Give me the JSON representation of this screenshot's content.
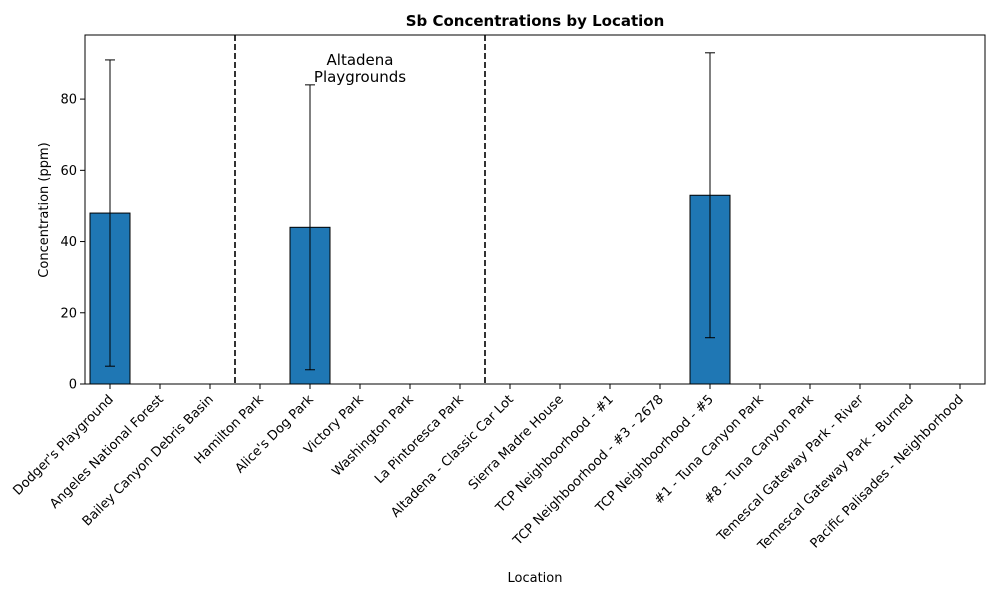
{
  "chart_data": {
    "type": "bar",
    "title": "Sb Concentrations by Location",
    "xlabel": "Location",
    "ylabel": "Concentration (ppm)",
    "ylim": [
      0,
      98
    ],
    "yticks": [
      0,
      20,
      40,
      60,
      80
    ],
    "grid": false,
    "categories": [
      "Dodger's Playground",
      "Angeles National Forest",
      "Bailey Canyon Debris Basin",
      "Hamilton Park",
      "Alice's Dog Park",
      "Victory Park",
      "Washington Park",
      "La Pintoresca Park",
      "Altadena - Classic Car Lot",
      "Sierra Madre House",
      "TCP Neighboorhood - #1",
      "TCP Neighboorhood - #3 - 2678",
      "TCP Neighboorhood - #5",
      "#1 - Tuna Canyon Park",
      "#8 - Tuna Canyon Park",
      "Temescal Gateway Park - River",
      "Temescal Gateway Park - Burned",
      "Pacific Palisades - Neighborhood"
    ],
    "values": [
      48,
      0,
      0,
      0,
      44,
      0,
      0,
      0,
      0,
      0,
      0,
      0,
      53,
      0,
      0,
      0,
      0,
      0
    ],
    "error_low": [
      5,
      null,
      null,
      null,
      4,
      null,
      null,
      null,
      null,
      null,
      null,
      null,
      13,
      null,
      null,
      null,
      null,
      null
    ],
    "error_high": [
      91,
      null,
      null,
      null,
      84,
      null,
      null,
      null,
      null,
      null,
      null,
      null,
      93,
      null,
      null,
      null,
      null,
      null
    ],
    "bar_color": "#1f77b4",
    "group_dividers_after_index": [
      2.5,
      7.5
    ],
    "annotation": "Altadena\nPlaygrounds"
  }
}
